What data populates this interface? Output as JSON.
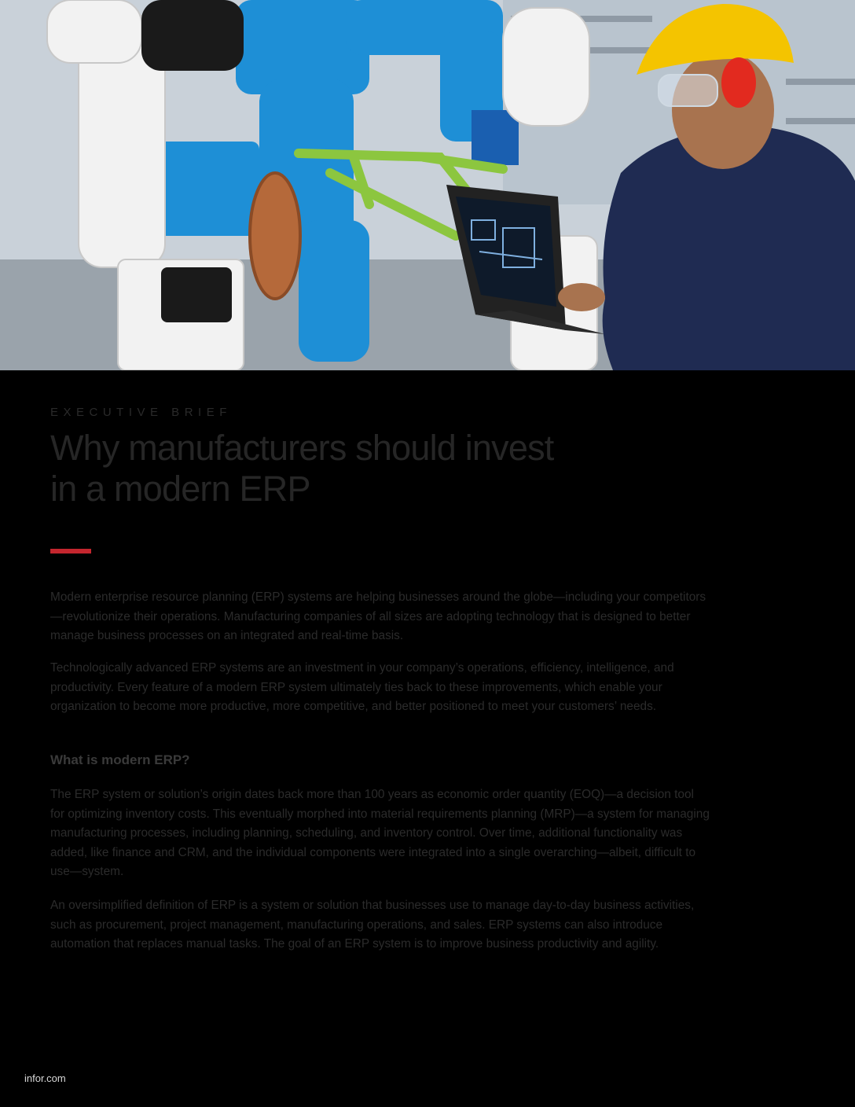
{
  "hero": {
    "image_description_icon": "factory-robot-engineer-photo"
  },
  "kicker": "EXECUTIVE BRIEF",
  "title": {
    "line1": "Why manufacturers should invest",
    "line2": "in a modern ERP"
  },
  "paragraphs": {
    "p1": "Modern enterprise resource planning (ERP) systems are helping businesses around the globe—including your competitors—revolutionize their operations. Manufacturing companies of all sizes are adopting technology that is designed to better manage business processes on an integrated and real-time basis.",
    "p2": "Technologically advanced ERP systems are an investment in your company’s operations, efficiency, intelligence, and productivity. Every feature of a modern ERP system ultimately ties back to these improvements, which enable your organization to become more productive, more competitive, and better positioned to meet your customers’ needs.",
    "section_heading": "What is modern ERP?",
    "p3": "The ERP system or solution’s origin dates back more than 100 years as economic order quantity (EOQ)—a decision tool for optimizing inventory costs. This eventually morphed into material requirements planning (MRP)—a system for managing manufacturing processes, including planning, scheduling, and inventory control. Over time, additional functionality was added, like finance and CRM, and the individual components were integrated into a single overarching—albeit, difficult to use—system.",
    "p4": "An oversimplified definition of ERP is a system or solution that businesses use to manage day-to-day business activities, such as procurement, project management, manufacturing operations, and sales. ERP systems can also introduce automation that replaces manual tasks. The goal of an ERP system is to improve business productivity and agility."
  },
  "footer": "infor.com",
  "colors": {
    "accent": "#c4262e",
    "robot_blue": "#1e8fd6",
    "frame_green": "#8cc63f",
    "helmet_yellow": "#f4c400"
  }
}
